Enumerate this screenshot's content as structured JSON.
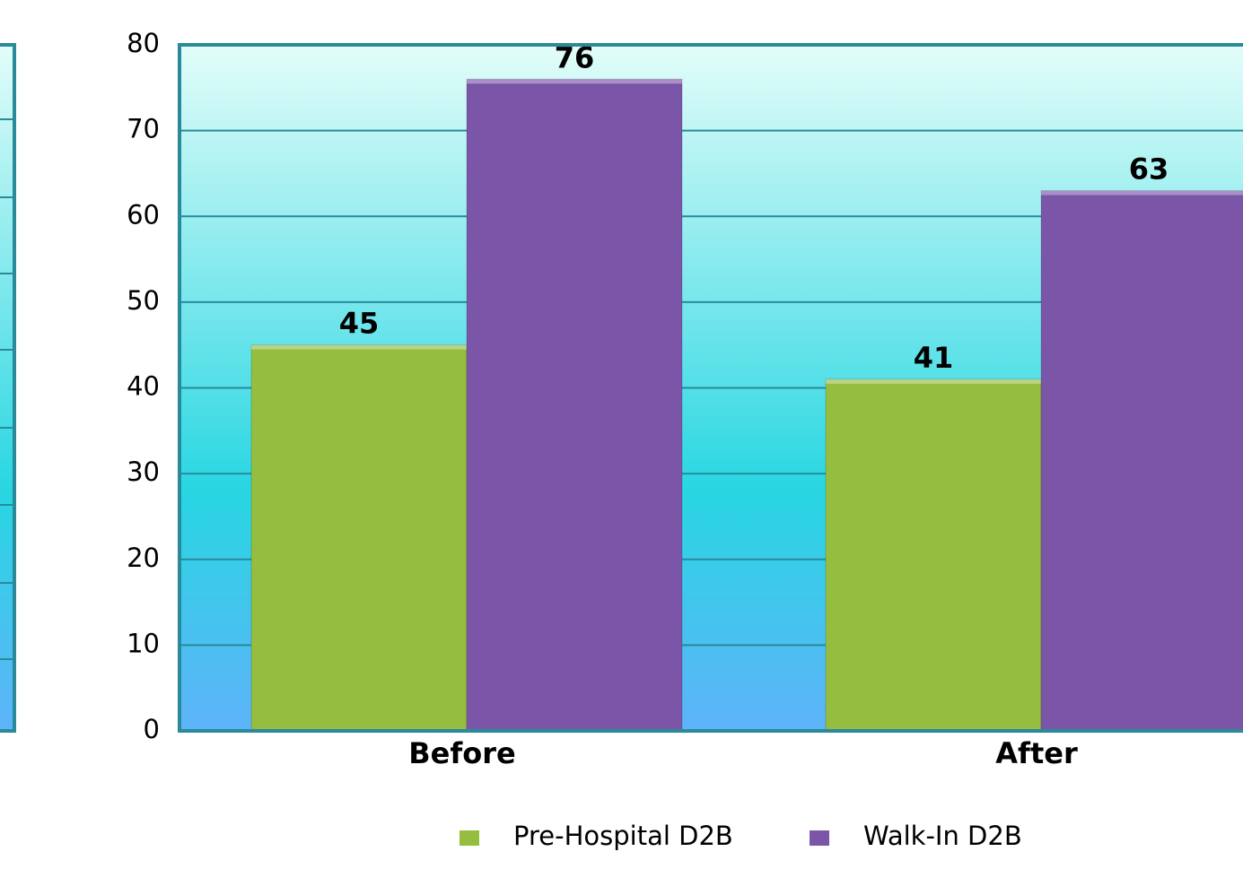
{
  "chart_data": {
    "type": "bar",
    "categories": [
      "Before",
      "After"
    ],
    "series": [
      {
        "name": "Pre-Hospital D2B",
        "color": "#95bd3f",
        "values": [
          45,
          41
        ]
      },
      {
        "name": "Walk-In D2B",
        "color": "#7b55a8",
        "values": [
          76,
          63
        ]
      }
    ],
    "ylim": [
      0,
      80
    ],
    "yticks": [
      0,
      10,
      20,
      30,
      40,
      50,
      60,
      70,
      80
    ],
    "grid": true,
    "legend": "bottom"
  }
}
